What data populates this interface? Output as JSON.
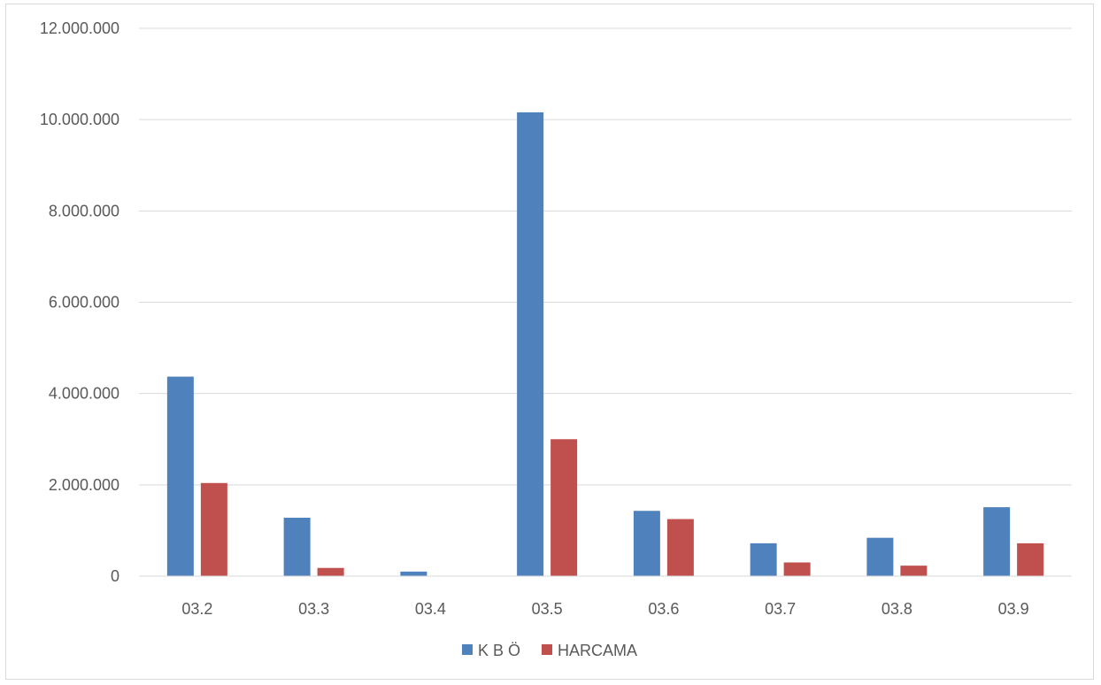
{
  "chart_data": {
    "type": "bar",
    "title": "",
    "xlabel": "",
    "ylabel": "",
    "categories": [
      "03.2",
      "03.3",
      "03.4",
      "03.5",
      "03.6",
      "03.7",
      "03.8",
      "03.9"
    ],
    "series": [
      {
        "name": "K B Ö",
        "color": "#4f81bd",
        "values": [
          4370000,
          1280000,
          100000,
          10160000,
          1430000,
          720000,
          840000,
          1510000
        ]
      },
      {
        "name": "HARCAMA",
        "color": "#c0504d",
        "values": [
          2040000,
          180000,
          0,
          3000000,
          1250000,
          300000,
          230000,
          720000
        ]
      }
    ],
    "ylim": [
      0,
      12000000
    ],
    "yticks": [
      0,
      2000000,
      4000000,
      6000000,
      8000000,
      10000000,
      12000000
    ],
    "ytick_labels": [
      "0",
      "2.000.000",
      "4.000.000",
      "6.000.000",
      "8.000.000",
      "10.000.000",
      "12.000.000"
    ],
    "grid": true,
    "legend_position": "bottom"
  }
}
